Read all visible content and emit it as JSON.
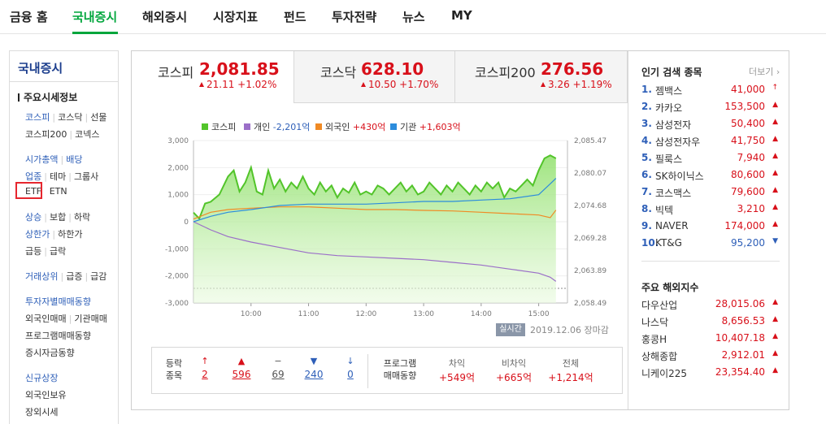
{
  "topnav": {
    "items": [
      "금융 홈",
      "국내증시",
      "해외증시",
      "시장지표",
      "펀드",
      "투자전략",
      "뉴스",
      "MY"
    ],
    "active": "국내증시"
  },
  "sidebar": {
    "title": "국내증시",
    "heading": "주요시세정보",
    "links": {
      "kospi": "코스피",
      "kosdaq": "코스닥",
      "futures": "선물",
      "kospi200": "코스피200",
      "konex": "코넥스",
      "market_cap": "시가총액",
      "dividend": "배당",
      "sector": "업종",
      "theme": "테마",
      "group": "그룹사",
      "etf": "ETF",
      "etn": "ETN",
      "rise": "상승",
      "flat": "보합",
      "fall": "하락",
      "upper_limit": "상한가",
      "lower_limit": "하한가",
      "surge": "급등",
      "plunge": "급락",
      "top_volume": "거래상위",
      "volume_surge": "급증",
      "volume_drop": "급감",
      "investor_trading": "투자자별매매동향",
      "foreign_trading": "외국인매매",
      "institution_trading": "기관매매",
      "program_trading": "프로그램매매동향",
      "deposit_trend": "증시자금동향",
      "new_listing": "신규상장",
      "foreign_holding": "외국인보유",
      "offhours": "장외시세"
    }
  },
  "tabs": [
    {
      "name": "코스피",
      "value": "2,081.85",
      "change": "21.11 +1.02%"
    },
    {
      "name": "코스닥",
      "value": "628.10",
      "change": "10.50 +1.70%"
    },
    {
      "name": "코스피200",
      "value": "276.56",
      "change": "3.26 +1.19%"
    }
  ],
  "legend": {
    "kospi": "코스피",
    "individual_label": "개인",
    "individual_value": "-2,201억",
    "foreign_label": "외국인",
    "foreign_value": "+430억",
    "institution_label": "기관",
    "institution_value": "+1,603억"
  },
  "chart_data": {
    "type": "line",
    "x_ticks": [
      "10:00",
      "11:00",
      "12:00",
      "13:00",
      "14:00",
      "15:00"
    ],
    "y_left_ticks": [
      "3,000",
      "2,000",
      "1,000",
      "0",
      "-1,000",
      "-2,000",
      "-3,000"
    ],
    "y_right_ticks": [
      "2,085.47",
      "2,080.07",
      "2,074.68",
      "2,069.28",
      "2,063.89",
      "2,058.49"
    ],
    "ylim_left": [
      -3000,
      3000
    ],
    "ylim_right": [
      2058.49,
      2085.47
    ],
    "series": [
      {
        "name": "코스피",
        "axis": "right",
        "color": "#52c42a",
        "x": [
          9.0,
          9.1,
          9.2,
          9.3,
          9.45,
          9.6,
          9.7,
          9.8,
          9.9,
          10.0,
          10.1,
          10.2,
          10.3,
          10.4,
          10.5,
          10.6,
          10.7,
          10.8,
          10.9,
          11.0,
          11.1,
          11.2,
          11.3,
          11.4,
          11.5,
          11.6,
          11.7,
          11.8,
          11.9,
          12.0,
          12.1,
          12.2,
          12.3,
          12.4,
          12.5,
          12.6,
          12.7,
          12.8,
          12.9,
          13.0,
          13.1,
          13.2,
          13.3,
          13.4,
          13.5,
          13.6,
          13.7,
          13.8,
          13.9,
          14.0,
          14.1,
          14.2,
          14.3,
          14.4,
          14.5,
          14.6,
          14.7,
          14.8,
          14.9,
          15.0,
          15.1,
          15.2,
          15.3
        ],
        "y": [
          2073.5,
          2072.5,
          2075.0,
          2075.3,
          2076.5,
          2079.5,
          2080.5,
          2077.0,
          2078.5,
          2081.0,
          2077.0,
          2076.5,
          2080.5,
          2077.5,
          2079.0,
          2077.0,
          2078.5,
          2077.5,
          2079.5,
          2077.5,
          2076.5,
          2078.5,
          2077.0,
          2078.0,
          2076.0,
          2077.5,
          2076.8,
          2078.5,
          2076.5,
          2077.0,
          2076.5,
          2078.0,
          2077.5,
          2076.5,
          2077.5,
          2078.5,
          2077.0,
          2078.0,
          2076.5,
          2077.0,
          2078.5,
          2077.5,
          2076.5,
          2078.0,
          2077.0,
          2078.5,
          2077.5,
          2076.5,
          2078.0,
          2077.0,
          2078.5,
          2077.5,
          2078.5,
          2076.0,
          2077.5,
          2077.0,
          2078.0,
          2079.0,
          2078.0,
          2080.5,
          2082.5,
          2083.0,
          2082.5
        ]
      },
      {
        "name": "개인",
        "axis": "left",
        "color": "#9b6fc8",
        "x": [
          9.0,
          9.3,
          9.6,
          10.0,
          10.5,
          11.0,
          11.5,
          12.0,
          12.5,
          13.0,
          13.5,
          14.0,
          14.5,
          15.0,
          15.2,
          15.3
        ],
        "y": [
          0,
          -300,
          -550,
          -750,
          -950,
          -1150,
          -1250,
          -1300,
          -1350,
          -1400,
          -1500,
          -1600,
          -1750,
          -1900,
          -2050,
          -2201
        ]
      },
      {
        "name": "외국인",
        "axis": "left",
        "color": "#f08a24",
        "x": [
          9.0,
          9.3,
          9.6,
          10.0,
          10.5,
          11.0,
          11.5,
          12.0,
          12.5,
          13.0,
          13.5,
          14.0,
          14.5,
          15.0,
          15.2,
          15.3
        ],
        "y": [
          100,
          350,
          450,
          500,
          550,
          550,
          500,
          450,
          450,
          420,
          400,
          350,
          300,
          250,
          150,
          430
        ]
      },
      {
        "name": "기관",
        "axis": "left",
        "color": "#2c8cdc",
        "x": [
          9.0,
          9.3,
          9.6,
          10.0,
          10.5,
          11.0,
          11.5,
          12.0,
          12.5,
          13.0,
          13.5,
          14.0,
          14.5,
          15.0,
          15.2,
          15.3
        ],
        "y": [
          0,
          200,
          350,
          450,
          600,
          650,
          650,
          650,
          700,
          750,
          750,
          800,
          850,
          1000,
          1400,
          1603
        ]
      }
    ]
  },
  "asof": {
    "badge": "실시간",
    "text": "2019.12.06 장마감"
  },
  "breadth": {
    "label": "등락\n종목",
    "items": [
      {
        "arrow": "↑",
        "value": "2",
        "color": "#d8101a"
      },
      {
        "arrow": "▲",
        "value": "596",
        "color": "#d8101a"
      },
      {
        "arrow": "−",
        "value": "69",
        "color": "#555555"
      },
      {
        "arrow": "▼",
        "value": "240",
        "color": "#2e5fb8"
      },
      {
        "arrow": "↓",
        "value": "0",
        "color": "#2e5fb8"
      }
    ]
  },
  "program": {
    "label": "프로그램\n매매동향",
    "items": [
      {
        "head": "차익",
        "value": "+549억"
      },
      {
        "head": "비차익",
        "value": "+665억"
      },
      {
        "head": "전체",
        "value": "+1,214억"
      }
    ]
  },
  "popular": {
    "title": "인기 검색 종목",
    "more": "더보기",
    "items": [
      {
        "no": "1.",
        "name": "젬백스",
        "price": "41,000",
        "arrow": "↑",
        "dir": "up"
      },
      {
        "no": "2.",
        "name": "카카오",
        "price": "153,500",
        "arrow": "▲",
        "dir": "up"
      },
      {
        "no": "3.",
        "name": "삼성전자",
        "price": "50,400",
        "arrow": "▲",
        "dir": "up"
      },
      {
        "no": "4.",
        "name": "삼성전자우",
        "price": "41,750",
        "arrow": "▲",
        "dir": "up"
      },
      {
        "no": "5.",
        "name": "필룩스",
        "price": "7,940",
        "arrow": "▲",
        "dir": "up"
      },
      {
        "no": "6.",
        "name": "SK하이닉스",
        "price": "80,600",
        "arrow": "▲",
        "dir": "up"
      },
      {
        "no": "7.",
        "name": "코스맥스",
        "price": "79,600",
        "arrow": "▲",
        "dir": "up"
      },
      {
        "no": "8.",
        "name": "빅텍",
        "price": "3,210",
        "arrow": "▲",
        "dir": "up"
      },
      {
        "no": "9.",
        "name": "NAVER",
        "price": "174,000",
        "arrow": "▲",
        "dir": "up"
      },
      {
        "no": "10.",
        "name": "KT&G",
        "price": "95,200",
        "arrow": "▼",
        "dir": "down"
      }
    ]
  },
  "world": {
    "title": "주요 해외지수",
    "items": [
      {
        "name": "다우산업",
        "value": "28,015.06",
        "arrow": "▲"
      },
      {
        "name": "나스닥",
        "value": "8,656.53",
        "arrow": "▲"
      },
      {
        "name": "홍콩H",
        "value": "10,407.18",
        "arrow": "▲"
      },
      {
        "name": "상해종합",
        "value": "2,912.01",
        "arrow": "▲"
      },
      {
        "name": "니케이225",
        "value": "23,354.40",
        "arrow": "▲"
      }
    ]
  },
  "colors": {
    "accent": "#00a63c",
    "up": "#d8101a",
    "down": "#2e5fb8",
    "highlight_box": "#e6262e"
  }
}
